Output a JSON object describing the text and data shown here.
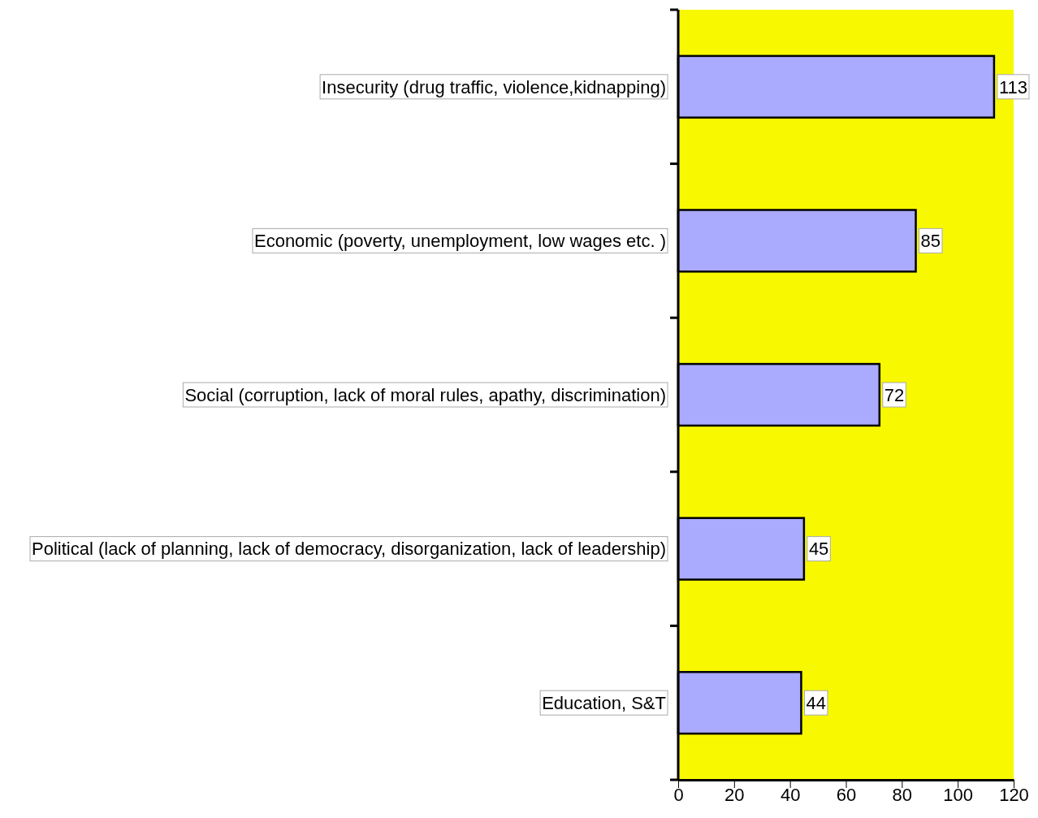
{
  "chart_data": {
    "type": "bar",
    "orientation": "horizontal",
    "categories": [
      "Insecurity  (drug traffic, violence,kidnapping)",
      "Economic (poverty, unemployment, low wages etc. )",
      "Social (corruption, lack of moral rules, apathy,  discrimination)",
      "Political (lack of planning, lack of democracy, disorganization, lack of leadership)",
      "Education, S&T"
    ],
    "values": [
      113,
      85,
      72,
      45,
      44
    ],
    "color": "#aaaaff",
    "xlim": [
      0,
      120
    ],
    "xticks": [
      0,
      20,
      40,
      60,
      80,
      100,
      120
    ],
    "data_labels": true,
    "grid": false
  }
}
